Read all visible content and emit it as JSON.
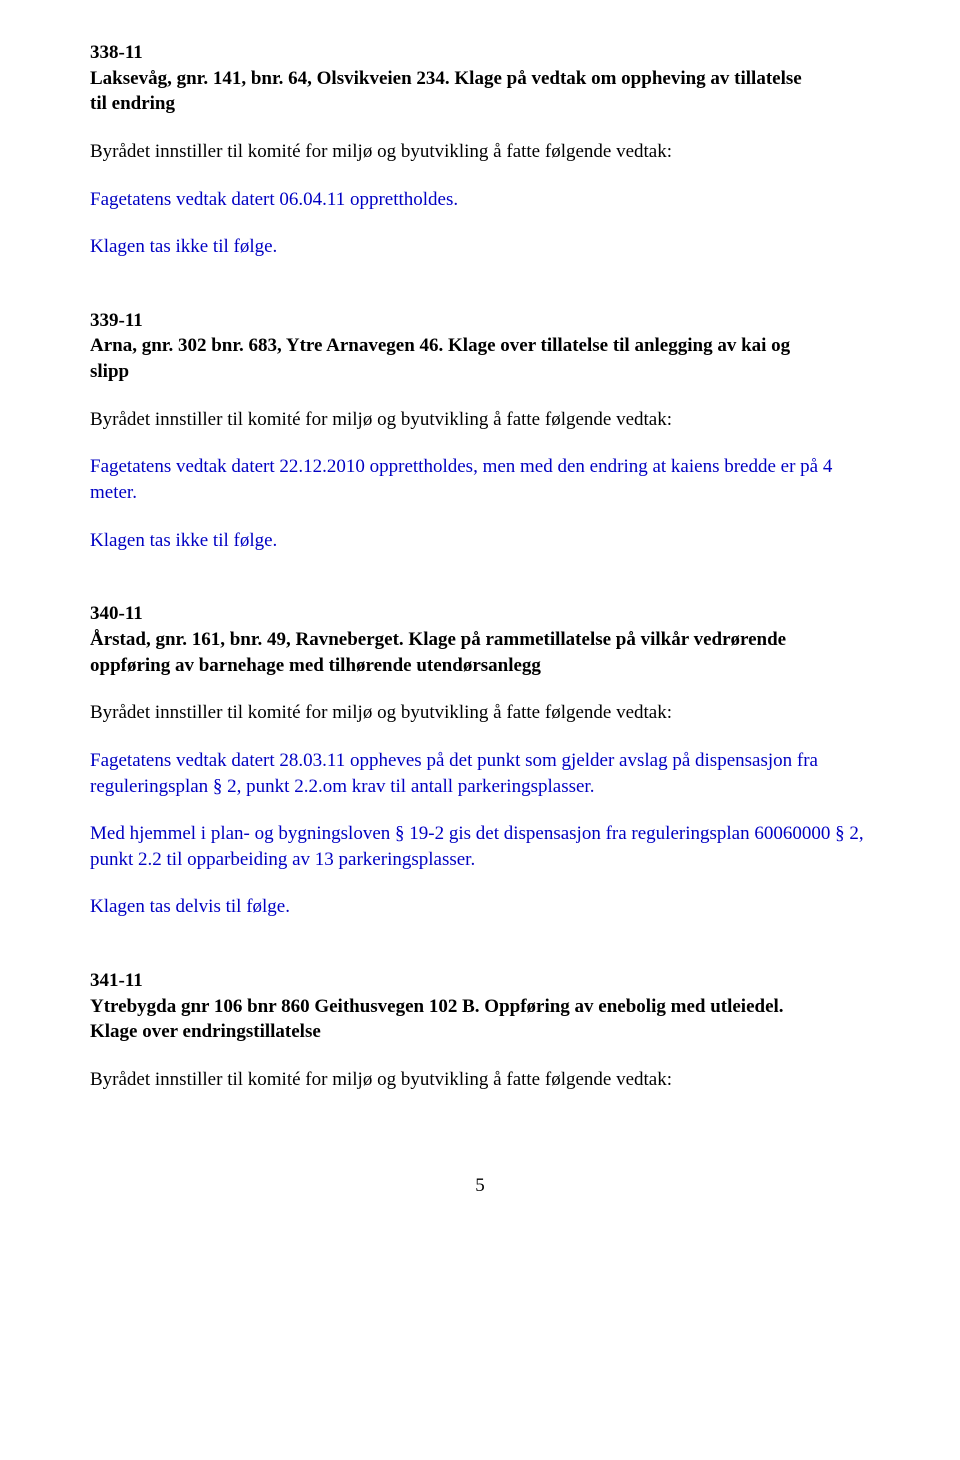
{
  "cases": {
    "c338": {
      "num": "338-11",
      "title_l1": "Laksevåg, gnr. 141, bnr. 64, Olsvikveien 234. Klage på vedtak om oppheving av tillatelse",
      "title_l2": "til endring",
      "lead": "Byrådet innstiller til komité for miljø og byutvikling å fatte følgende vedtak:",
      "b1": "Fagetatens vedtak datert 06.04.11 opprettholdes.",
      "b2": "Klagen tas ikke til følge."
    },
    "c339": {
      "num": "339-11",
      "title_l1": "Arna, gnr. 302 bnr. 683, Ytre Arnavegen 46. Klage over tillatelse til anlegging av kai og",
      "title_l2": "slipp",
      "lead": "Byrådet innstiller til komité for miljø og byutvikling å fatte følgende vedtak:",
      "b1": "Fagetatens vedtak datert 22.12.2010 opprettholdes, men med den endring at kaiens bredde er på 4 meter.",
      "b2": "Klagen tas ikke til følge."
    },
    "c340": {
      "num": "340-11",
      "title_l1": "Årstad, gnr. 161, bnr. 49, Ravneberget. Klage på rammetillatelse på vilkår vedrørende",
      "title_l2": "oppføring av barnehage med tilhørende utendørsanlegg",
      "lead": "Byrådet innstiller til komité for miljø og byutvikling å fatte følgende vedtak:",
      "b1": "Fagetatens vedtak datert 28.03.11 oppheves på det punkt som gjelder avslag på dispensasjon fra reguleringsplan § 2, punkt 2.2.om krav til antall parkeringsplasser.",
      "b2": "Med hjemmel i plan- og bygningsloven § 19-2 gis det dispensasjon fra reguleringsplan 60060000 § 2, punkt 2.2 til opparbeiding av 13 parkeringsplasser.",
      "b3": "Klagen tas delvis til følge."
    },
    "c341": {
      "num": "341-11",
      "title_l1": "Ytrebygda gnr 106 bnr 860 Geithusvegen 102 B. Oppføring av enebolig med utleiedel.",
      "title_l2": "Klage over endringstillatelse",
      "lead": "Byrådet innstiller til komité for miljø og byutvikling å fatte følgende vedtak:"
    }
  },
  "page_number": "5"
}
